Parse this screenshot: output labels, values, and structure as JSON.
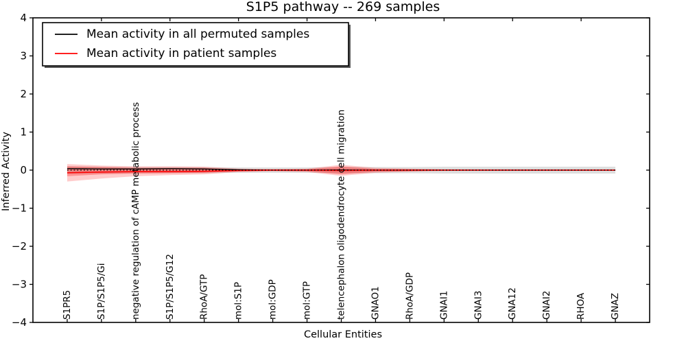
{
  "chart_data": {
    "type": "line",
    "title": "S1P5 pathway -- 269 samples",
    "xlabel": "Cellular Entities",
    "ylabel": "Inferred Activity",
    "ylim": [
      -4,
      4
    ],
    "grid": false,
    "legend_position": "upper left",
    "ytick_labels": [
      "4",
      "3",
      "2",
      "1",
      "0",
      "−1",
      "−2",
      "−3",
      "−4"
    ],
    "categories": [
      "S1PR5",
      "S1P/S1P5/Gi",
      "negative regulation of cAMP metabolic process",
      "S1P/S1P5/G12",
      "RhoA/GTP",
      "mol:S1P",
      "mol:GDP",
      "mol:GTP",
      "telencephalon oligodendrocyte cell migration",
      "GNAO1",
      "RhoA/GDP",
      "GNAI1",
      "GNAI3",
      "GNA12",
      "GNAI2",
      "RHOA",
      "GNAZ"
    ],
    "legend": [
      {
        "label": "Mean activity in all permuted samples",
        "color": "#000000"
      },
      {
        "label": "Mean activity in patient samples",
        "color": "#ff0000"
      }
    ],
    "series": [
      {
        "name": "permuted-mean-line",
        "label": "Mean activity in all permuted samples",
        "color": "#000000",
        "style": "solid",
        "width": 1.4,
        "values": [
          0.04,
          0.03,
          0.03,
          0.04,
          0.03,
          0.01,
          0.0,
          0.0,
          0.005,
          0.0,
          0.0,
          0.0,
          0.0,
          0.0,
          0.0,
          0.0,
          0.0
        ]
      },
      {
        "name": "patient-mean-line",
        "label": "Mean activity in patient samples",
        "color": "#ff0000",
        "style": "solid",
        "width": 1.6,
        "values": [
          -0.07,
          -0.05,
          -0.04,
          -0.04,
          -0.03,
          -0.01,
          0.0,
          0.0,
          -0.01,
          0.0,
          0.0,
          0.0,
          0.0,
          0.0,
          0.0,
          0.0,
          0.0
        ]
      },
      {
        "name": "zero-reference-line",
        "label": "zero reference",
        "color": "#000000",
        "style": "dotted",
        "width": 1.3,
        "values": [
          0,
          0,
          0,
          0,
          0,
          0,
          0,
          0,
          0,
          0,
          0,
          0,
          0,
          0,
          0,
          0,
          0
        ]
      }
    ],
    "bands": [
      {
        "name": "permuted-std-band",
        "color": "#000000",
        "opacity": 0.13,
        "upper": [
          0.1,
          0.09,
          0.08,
          0.08,
          0.08,
          0.07,
          0.07,
          0.07,
          0.08,
          0.08,
          0.08,
          0.09,
          0.09,
          0.09,
          0.09,
          0.09,
          0.09
        ],
        "lower": [
          -0.1,
          -0.09,
          -0.08,
          -0.08,
          -0.08,
          -0.07,
          -0.07,
          -0.07,
          -0.08,
          -0.08,
          -0.08,
          -0.09,
          -0.09,
          -0.09,
          -0.09,
          -0.09,
          -0.09
        ]
      },
      {
        "name": "patient-std-outer-band",
        "color": "#ff0000",
        "opacity": 0.2,
        "upper": [
          0.16,
          0.12,
          0.1,
          0.1,
          0.09,
          0.04,
          0.03,
          0.04,
          0.14,
          0.06,
          0.04,
          0.02,
          0.015,
          0.015,
          0.015,
          0.015,
          0.015
        ],
        "lower": [
          -0.3,
          -0.22,
          -0.16,
          -0.13,
          -0.11,
          -0.05,
          -0.03,
          -0.05,
          -0.15,
          -0.07,
          -0.04,
          -0.02,
          -0.015,
          -0.015,
          -0.015,
          -0.015,
          -0.015
        ]
      },
      {
        "name": "patient-std-inner-band",
        "color": "#ff0000",
        "opacity": 0.28,
        "upper": [
          0.1,
          0.08,
          0.06,
          0.06,
          0.06,
          0.02,
          0.015,
          0.02,
          0.1,
          0.03,
          0.02,
          0.01,
          0.008,
          0.008,
          0.008,
          0.008,
          0.008
        ],
        "lower": [
          -0.16,
          -0.11,
          -0.09,
          -0.08,
          -0.07,
          -0.03,
          -0.02,
          -0.03,
          -0.11,
          -0.04,
          -0.03,
          -0.01,
          -0.008,
          -0.008,
          -0.008,
          -0.008,
          -0.008
        ]
      }
    ],
    "colors": {
      "frame": "#000000",
      "background": "#ffffff"
    }
  }
}
